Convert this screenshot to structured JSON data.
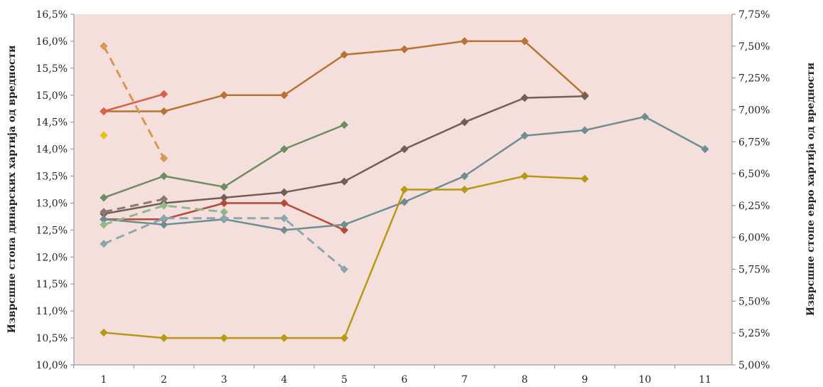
{
  "chart_data": {
    "type": "line",
    "plot_background": "#f5dfdc",
    "grid": false,
    "categories": [
      "1",
      "2",
      "3",
      "4",
      "5",
      "6",
      "7",
      "8",
      "9",
      "10",
      "11"
    ],
    "left_axis": {
      "label": "Изврсшне стопа динарских хартија од вредности",
      "range": [
        10.0,
        16.5
      ],
      "ticks": [
        "10,0%",
        "10,5%",
        "11,0%",
        "11,5%",
        "12,0%",
        "12,5%",
        "13,0%",
        "13,5%",
        "14,0%",
        "14,5%",
        "15,0%",
        "15,5%",
        "16,0%",
        "16,5%"
      ]
    },
    "right_axis": {
      "label": "Изврсшне стопе евро хартија од вредности",
      "range": [
        5.0,
        7.75
      ],
      "ticks": [
        "5,00%",
        "5,25%",
        "5,50%",
        "5,75%",
        "6,00%",
        "6,25%",
        "6,50%",
        "6,75%",
        "7,00%",
        "7,25%",
        "7,50%",
        "7,75%"
      ]
    },
    "series": [
      {
        "axis": "left",
        "color": "#b87333",
        "dashed": false,
        "x": [
          1,
          2,
          3,
          4,
          5,
          6,
          7,
          8,
          9
        ],
        "values": [
          14.7,
          14.7,
          15.0,
          15.0,
          15.75,
          15.85,
          16.0,
          16.0,
          15.0
        ]
      },
      {
        "axis": "left",
        "color": "#d9604a",
        "dashed": false,
        "x": [
          1,
          2
        ],
        "values": [
          14.7,
          15.02
        ]
      },
      {
        "axis": "left",
        "color": "#6b8e63",
        "dashed": false,
        "x": [
          1,
          2,
          3,
          4,
          5
        ],
        "values": [
          13.1,
          13.5,
          13.3,
          14.0,
          14.45
        ]
      },
      {
        "axis": "left",
        "color": "#735f55",
        "dashed": false,
        "x": [
          1,
          2,
          3,
          4,
          5,
          6,
          7,
          8,
          9
        ],
        "values": [
          12.8,
          13.0,
          13.1,
          13.2,
          13.4,
          14.0,
          14.5,
          14.95,
          14.98
        ]
      },
      {
        "axis": "left",
        "color": "#b54a3a",
        "dashed": false,
        "x": [
          1,
          2,
          3,
          4,
          5
        ],
        "values": [
          12.7,
          12.7,
          13.0,
          13.0,
          12.5
        ]
      },
      {
        "axis": "left",
        "color": "#6e8e92",
        "dashed": false,
        "x": [
          1,
          2,
          3,
          4,
          5,
          6,
          7,
          8,
          9,
          10,
          11
        ],
        "values": [
          12.7,
          12.6,
          12.7,
          12.5,
          12.6,
          13.02,
          13.5,
          14.25,
          14.35,
          14.6,
          14.0
        ]
      },
      {
        "axis": "left",
        "color": "#b89a12",
        "dashed": false,
        "x": [
          1,
          2,
          3,
          4,
          5,
          6,
          7,
          8,
          9
        ],
        "values": [
          10.6,
          10.5,
          10.5,
          10.5,
          10.5,
          13.25,
          13.25,
          13.5,
          13.45
        ]
      },
      {
        "axis": "right",
        "color": "#d99850",
        "dashed": true,
        "x": [
          1,
          2
        ],
        "values": [
          7.5,
          6.62
        ]
      },
      {
        "axis": "right",
        "color": "#e3c21a",
        "dashed": false,
        "x": [
          1
        ],
        "values": [
          6.8
        ]
      },
      {
        "axis": "right",
        "color": "#8c7a6e",
        "dashed": true,
        "x": [
          1,
          2
        ],
        "values": [
          6.2,
          6.3
        ]
      },
      {
        "axis": "right",
        "color": "#8fb98a",
        "dashed": true,
        "x": [
          1,
          2,
          3
        ],
        "values": [
          6.1,
          6.25,
          6.2
        ]
      },
      {
        "axis": "right",
        "color": "#8aa8ae",
        "dashed": true,
        "x": [
          1,
          2,
          3,
          4,
          5
        ],
        "values": [
          5.95,
          6.15,
          6.15,
          6.15,
          5.75
        ]
      }
    ]
  }
}
